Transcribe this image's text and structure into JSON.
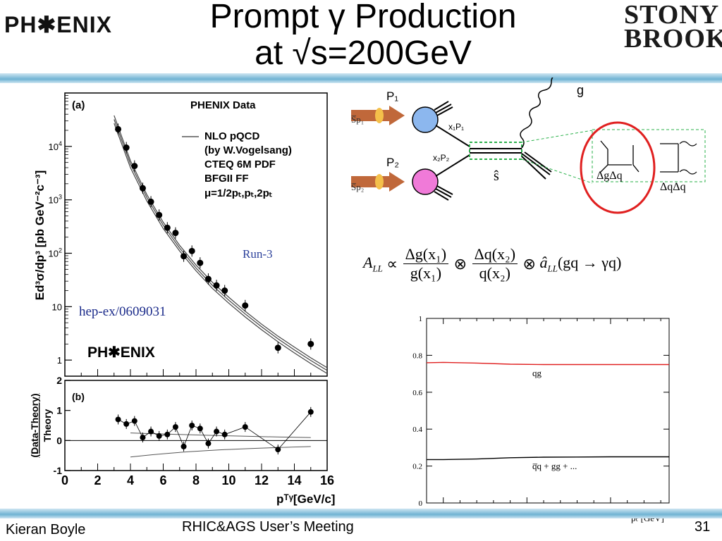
{
  "header": {
    "title_line1": "Prompt γ Production",
    "title_line2": "at √s=200GeV",
    "logo_left": "PH✱ENIX",
    "logo_right_line1": "STONY",
    "logo_right_line2": "BROOK"
  },
  "left_panel": {
    "a_label": "(a)",
    "legend": [
      "PHENIX Data",
      "NLO pQCD",
      "(by W.Vogelsang)",
      "CTEQ 6M PDF",
      "BFGII FF",
      "μ=1/2pₜ,pₜ,2pₜ"
    ],
    "run_label": "Run-3",
    "ref_label": "hep-ex/0609031",
    "logo": "PH✱ENIX",
    "b_label": "(b)",
    "top_ylabel": "Ed³σ/dp³ [pb GeV⁻²c⁻³]",
    "bottom_ylabel_line1": "(Data-Theory)",
    "bottom_ylabel_line2": "Theory",
    "xlabel": "pᵀᵞ[GeV/c]"
  },
  "diagram": {
    "p1": "P₁",
    "p2": "P₂",
    "sp1": "S̅p₁",
    "sp2": "S̅p₂",
    "x1p1": "x₁P₁",
    "x2p2": "x₂P₂",
    "shat": "ŝ",
    "gamma": "g",
    "dgdq": "ΔgΔq",
    "dqdq": "ΔqΔq"
  },
  "formula": {
    "lhs": "A",
    "lhs_sub": "LL",
    "propto": "∝",
    "num1": "Δg(x₁)",
    "den1": "g(x₁)",
    "otimes": "⊗",
    "num2": "Δq(x₂)",
    "den2": "q(x₂)",
    "ahat": "â",
    "ahat_sub": "LL",
    "proc": "(gq → γq)"
  },
  "footer": {
    "author": "Kieran Boyle",
    "event": "RHIC&AGS User’s Meeting",
    "page": "31"
  },
  "chart_data": [
    {
      "id": "cross-section",
      "type": "scatter",
      "xlim": [
        0,
        16
      ],
      "ylog": true,
      "ylim": [
        0.5,
        100000
      ],
      "x": [
        3.25,
        3.75,
        4.25,
        4.75,
        5.25,
        5.75,
        6.25,
        6.75,
        7.25,
        7.75,
        8.25,
        8.75,
        9.25,
        9.75,
        11,
        13,
        15
      ],
      "values": [
        21000,
        9500,
        4300,
        1650,
        920,
        520,
        300,
        240,
        88,
        110,
        66,
        33,
        25,
        20,
        10.5,
        1.7,
        2.0
      ],
      "theory_curves": [
        {
          "x": [
            3,
            4,
            5,
            6,
            7,
            8,
            9,
            10,
            11,
            12,
            13,
            14,
            15,
            16
          ],
          "values": [
            38000,
            5400,
            1250,
            380,
            140,
            60,
            28.5,
            15,
            8.2,
            4.7,
            2.8,
            1.75,
            1.1,
            0.72
          ]
        },
        {
          "x": [
            3,
            4,
            5,
            6,
            7,
            8,
            9,
            10,
            11,
            12,
            13,
            14,
            15,
            16
          ],
          "values": [
            32000,
            4700,
            1100,
            335,
            125,
            53,
            25,
            13.2,
            7.3,
            4.2,
            2.5,
            1.55,
            0.98,
            0.64
          ]
        },
        {
          "x": [
            3,
            4,
            5,
            6,
            7,
            8,
            9,
            10,
            11,
            12,
            13,
            14,
            15,
            16
          ],
          "values": [
            27000,
            4000,
            950,
            290,
            110,
            47,
            22,
            11.6,
            6.4,
            3.7,
            2.2,
            1.36,
            0.86,
            0.56
          ]
        }
      ]
    },
    {
      "id": "ratio",
      "type": "scatter",
      "xlim": [
        0,
        16
      ],
      "ylim": [
        -1,
        2
      ],
      "x": [
        3.25,
        3.75,
        4.25,
        4.75,
        5.25,
        5.75,
        6.25,
        6.75,
        7.25,
        7.75,
        8.25,
        8.75,
        9.25,
        9.75,
        11,
        13,
        15
      ],
      "values": [
        0.7,
        0.55,
        0.65,
        0.1,
        0.3,
        0.15,
        0.2,
        0.45,
        -0.2,
        0.5,
        0.4,
        -0.1,
        0.3,
        0.2,
        0.45,
        -0.3,
        0.95
      ]
    },
    {
      "id": "partonic-fraction",
      "type": "line",
      "xlabel": "pₜ [GeV]",
      "xlim": [
        4,
        18.5
      ],
      "ylim": [
        0,
        1
      ],
      "x_ticks": [
        5,
        10,
        15
      ],
      "y_ticks": [
        0,
        0.2,
        0.4,
        0.6,
        0.8,
        1
      ],
      "series": [
        {
          "name": "qg",
          "color": "#e02020",
          "x": [
            4,
            5,
            7,
            9,
            11,
            13,
            15,
            17,
            18.5
          ],
          "values": [
            0.76,
            0.762,
            0.758,
            0.752,
            0.75,
            0.75,
            0.75,
            0.75,
            0.75
          ]
        },
        {
          "name": "q̅q + gg + ...",
          "color": "#000000",
          "x": [
            4,
            5,
            7,
            9,
            11,
            13,
            15,
            17,
            18.5
          ],
          "values": [
            0.235,
            0.235,
            0.238,
            0.245,
            0.248,
            0.249,
            0.25,
            0.25,
            0.25
          ]
        }
      ]
    }
  ]
}
